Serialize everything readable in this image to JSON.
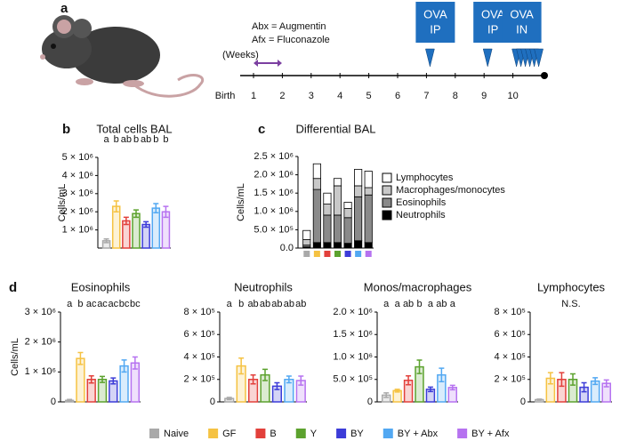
{
  "timeline": {
    "letter": "a",
    "notes": [
      "Abx = Augmentin",
      "Afx = Fluconazole"
    ],
    "unit_label": "(Weeks)",
    "start_label": "Birth",
    "weeks": [
      1,
      2,
      3,
      4,
      5,
      6,
      7,
      8,
      9,
      10
    ],
    "events": [
      {
        "week": 7,
        "label": [
          "OVA",
          "IP"
        ]
      },
      {
        "week": 9,
        "label": [
          "OVA",
          "IP"
        ]
      },
      {
        "week": 10,
        "label": [
          "OVA",
          "IN"
        ]
      }
    ]
  },
  "panel_letters": [
    "b",
    "c",
    "d"
  ],
  "groups": {
    "names": [
      "Naive",
      "GF",
      "B",
      "Y",
      "BY",
      "BY + Abx",
      "BY + Afx"
    ],
    "colors": [
      "#a9a9a9",
      "#f5c242",
      "#e2403b",
      "#5ca22e",
      "#3c3cd8",
      "#52a8f2",
      "#b672f0"
    ]
  },
  "chart_data": [
    {
      "type": "bar",
      "title": "Total cells BAL",
      "ylabel": "Cells/mL",
      "values": [
        400000,
        2300000,
        1500000,
        1900000,
        1300000,
        2200000,
        2000000
      ],
      "errors": [
        100000,
        300000,
        200000,
        200000,
        150000,
        250000,
        300000
      ],
      "annotations": [
        "a",
        "b",
        "ab",
        "b",
        "ab",
        "b",
        "b"
      ],
      "ylim": [
        0,
        5000000
      ],
      "yticks": [
        {
          "value": 1000000,
          "label": "1 × 10⁶"
        },
        {
          "value": 2000000,
          "label": "2 × 10⁶"
        },
        {
          "value": 3000000,
          "label": "3 × 10⁶"
        },
        {
          "value": 4000000,
          "label": "4 × 10⁶"
        },
        {
          "value": 5000000,
          "label": "5 × 10⁶"
        }
      ]
    },
    {
      "type": "stacked_bar",
      "title": "Differential BAL",
      "ylabel": "Cells/mL",
      "categories": [
        null,
        null,
        null,
        null,
        null,
        null,
        null
      ],
      "series": [
        {
          "name": "Lymphocytes",
          "color": "#ffffff",
          "values": [
            250000,
            400000,
            300000,
            200000,
            170000,
            450000,
            450000
          ]
        },
        {
          "name": "Macrophages/monocytes",
          "color": "#c8c8c8",
          "values": [
            150000,
            300000,
            300000,
            800000,
            250000,
            300000,
            200000
          ]
        },
        {
          "name": "Eosinophils",
          "color": "#8a8a8a",
          "values": [
            50000,
            1450000,
            750000,
            750000,
            700000,
            1200000,
            1300000
          ]
        },
        {
          "name": "Neutrophils",
          "color": "#000000",
          "values": [
            30000,
            150000,
            150000,
            150000,
            130000,
            200000,
            150000
          ]
        }
      ],
      "ylim": [
        0,
        2500000
      ],
      "yticks": [
        {
          "value": 0,
          "label": "0.0"
        },
        {
          "value": 500000,
          "label": "5.0 × 10⁵"
        },
        {
          "value": 1000000,
          "label": "1.0 × 10⁶"
        },
        {
          "value": 1500000,
          "label": "1.5 × 10⁶"
        },
        {
          "value": 2000000,
          "label": "2.0 × 10⁶"
        },
        {
          "value": 2500000,
          "label": "2.5 × 10⁶"
        }
      ]
    },
    {
      "type": "bar",
      "title": "Eosinophils",
      "ylabel": "Cells/mL",
      "values": [
        50000,
        1450000,
        750000,
        750000,
        700000,
        1200000,
        1300000
      ],
      "errors": [
        30000,
        200000,
        120000,
        100000,
        100000,
        200000,
        200000
      ],
      "annotations": [
        "a",
        "b",
        "ac",
        "ac",
        "ac",
        "bc",
        "bc"
      ],
      "ylim": [
        0,
        3000000
      ],
      "yticks": [
        0,
        {
          "value": 1000000,
          "label": "1 × 10⁶"
        },
        {
          "value": 2000000,
          "label": "2 × 10⁶"
        },
        {
          "value": 3000000,
          "label": "3 × 10⁶"
        }
      ]
    },
    {
      "type": "bar",
      "title": "Neutrophils",
      "values": [
        30000,
        320000,
        200000,
        240000,
        140000,
        200000,
        190000
      ],
      "errors": [
        10000,
        70000,
        40000,
        50000,
        30000,
        30000,
        40000
      ],
      "annotations": [
        "a",
        "b",
        "ab",
        "ab",
        "ab",
        "ab",
        "ab"
      ],
      "ylim": [
        0,
        800000
      ],
      "yticks": [
        0,
        {
          "value": 200000,
          "label": "2 × 10⁵"
        },
        {
          "value": 400000,
          "label": "4 × 10⁵"
        },
        {
          "value": 600000,
          "label": "6 × 10⁵"
        },
        {
          "value": 800000,
          "label": "8 × 10⁵"
        }
      ]
    },
    {
      "type": "bar",
      "title": "Monos/macrophages",
      "values": [
        150000,
        250000,
        480000,
        780000,
        280000,
        600000,
        320000
      ],
      "errors": [
        50000,
        30000,
        100000,
        150000,
        50000,
        150000,
        50000
      ],
      "annotations": [
        "a",
        "a",
        "ab",
        "b",
        "a",
        "ab",
        "a"
      ],
      "ylim": [
        0,
        2000000
      ],
      "yticks": [
        0,
        {
          "value": 500000,
          "label": "5.0 × 10⁵"
        },
        {
          "value": 1000000,
          "label": "1.0 × 10⁶"
        },
        {
          "value": 1500000,
          "label": "1.5 × 10⁶"
        },
        {
          "value": 2000000,
          "label": "2.0 × 10⁶"
        }
      ]
    },
    {
      "type": "bar",
      "title": "Lymphocytes",
      "values": [
        20000,
        210000,
        200000,
        200000,
        130000,
        185000,
        165000
      ],
      "errors": [
        5000,
        50000,
        60000,
        50000,
        40000,
        30000,
        30000
      ],
      "annotation": "N.S.",
      "ylim": [
        0,
        800000
      ],
      "yticks": [
        0,
        {
          "value": 200000,
          "label": "2 × 10⁵"
        },
        {
          "value": 400000,
          "label": "4 × 10⁵"
        },
        {
          "value": 600000,
          "label": "6 × 10⁵"
        },
        {
          "value": 800000,
          "label": "8 × 10⁵"
        }
      ]
    }
  ]
}
